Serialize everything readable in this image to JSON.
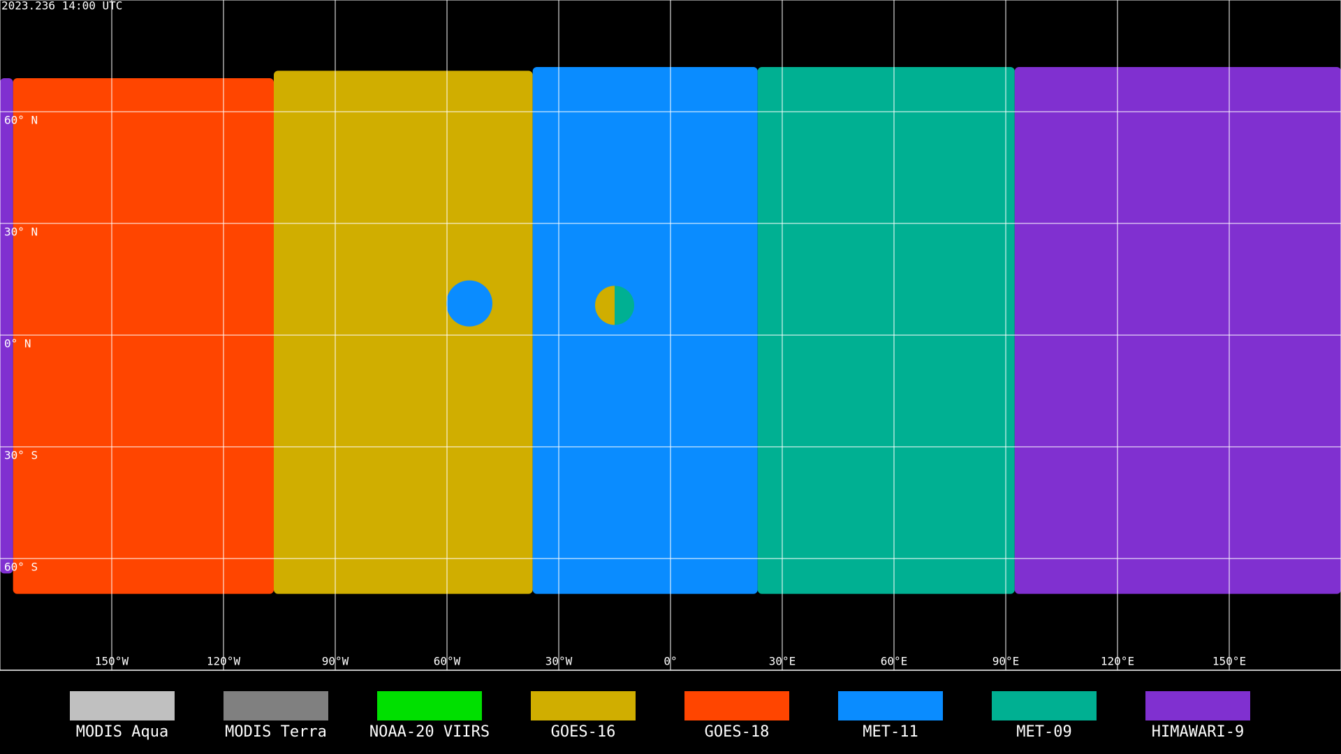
{
  "header": {
    "timestamp": "2023.236 14:00 UTC"
  },
  "map": {
    "lat_labels": [
      "60° N",
      "30° N",
      "0° N",
      "30° S",
      "60° S"
    ],
    "lon_labels": [
      "150°W",
      "120°W",
      "90°W",
      "60°W",
      "30°W",
      "0°",
      "30°E",
      "60°E",
      "90°E",
      "120°E",
      "150°E"
    ]
  },
  "legend": [
    {
      "name": "MODIS Aqua",
      "color": "#c0c0c0"
    },
    {
      "name": "MODIS Terra",
      "color": "#808080"
    },
    {
      "name": "NOAA-20 VIIRS",
      "color": "#00e000"
    },
    {
      "name": "GOES-16",
      "color": "#d0ae00"
    },
    {
      "name": "GOES-18",
      "color": "#ff4500"
    },
    {
      "name": "MET-11",
      "color": "#0a8cff"
    },
    {
      "name": "MET-09",
      "color": "#00b092"
    },
    {
      "name": "HIMAWARI-9",
      "color": "#8030d0"
    }
  ]
}
